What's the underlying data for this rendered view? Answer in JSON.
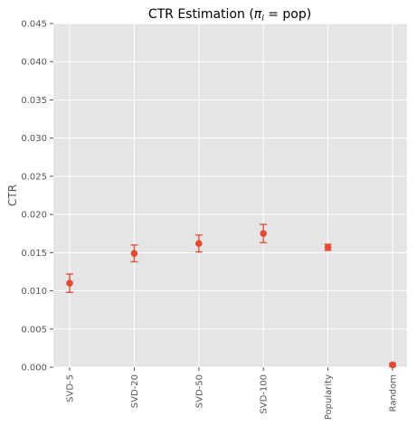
{
  "chart_data": {
    "type": "scatter",
    "title": "CTR Estimation (",
    "title_pi": "π",
    "title_sub": "l",
    "title_tail": " =  pop)",
    "xlabel": "",
    "ylabel": "CTR",
    "categories": [
      "SVD-5",
      "SVD-20",
      "SVD-50",
      "SVD-100",
      "Popularity",
      "Random"
    ],
    "values": [
      0.011,
      0.0149,
      0.0162,
      0.0175,
      0.0157,
      0.0003
    ],
    "err_low": [
      0.0012,
      0.0011,
      0.0011,
      0.0012,
      0.0004,
      0.0002
    ],
    "err_high": [
      0.0012,
      0.0011,
      0.0011,
      0.0012,
      0.0004,
      0.0002
    ],
    "ylim": [
      0,
      0.045
    ],
    "yticks": [
      "0.000",
      "0.005",
      "0.010",
      "0.015",
      "0.020",
      "0.025",
      "0.030",
      "0.035",
      "0.040",
      "0.045"
    ],
    "ytick_values": [
      0,
      0.005,
      0.01,
      0.015,
      0.02,
      0.025,
      0.03,
      0.035,
      0.04,
      0.045
    ],
    "grid": true,
    "colors": {
      "marker": "#E24A33",
      "background": "#E5E5E5",
      "grid": "#FFFFFF"
    }
  }
}
